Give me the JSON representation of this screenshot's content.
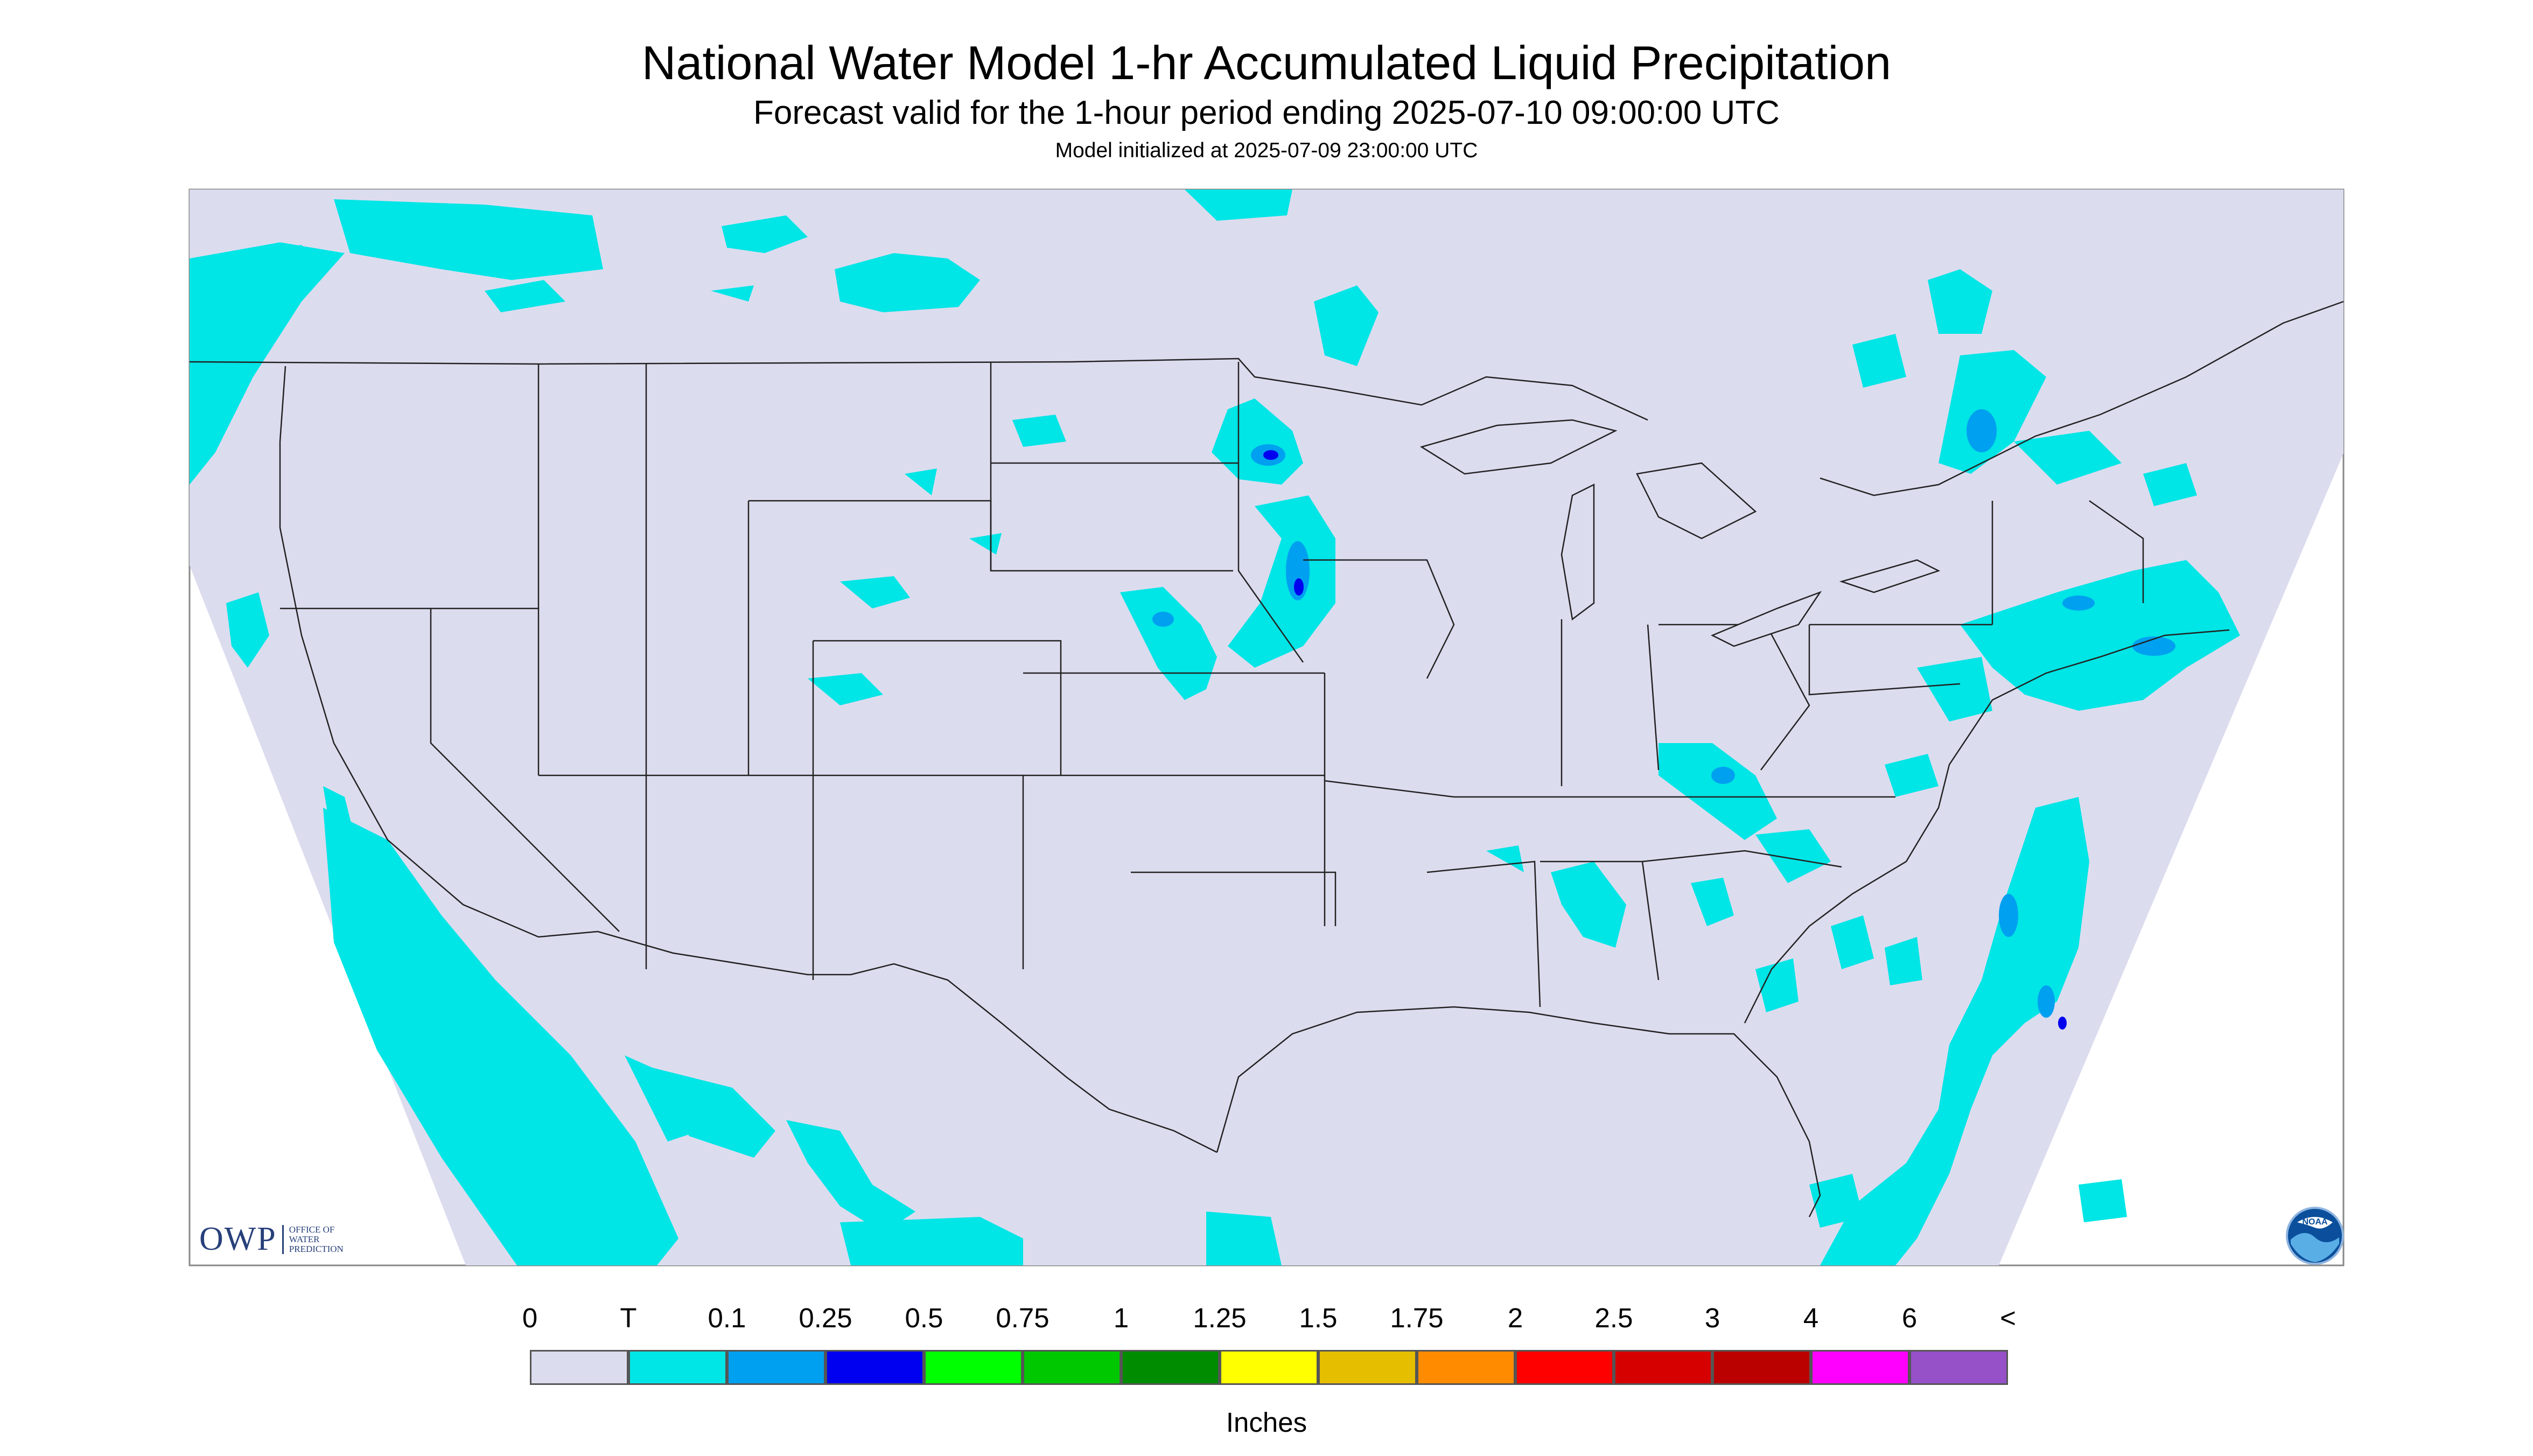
{
  "header": {
    "title": "National Water Model 1-hr Accumulated Liquid Precipitation",
    "subtitle": "Forecast valid for the 1-hour period ending 2025-07-10 09:00:00 UTC",
    "init": "Model initialized at 2025-07-09 23:00:00 UTC"
  },
  "legend": {
    "units": "Inches",
    "ticks": [
      "0",
      "T",
      "0.1",
      "0.25",
      "0.5",
      "0.75",
      "1",
      "1.25",
      "1.5",
      "1.75",
      "2",
      "2.5",
      "3",
      "4",
      "6",
      "<"
    ],
    "colors": [
      "#dcdcef",
      "#00e5e5",
      "#00a0f0",
      "#0000f0",
      "#00ff00",
      "#00c800",
      "#008c00",
      "#ffff00",
      "#e6be00",
      "#ff8c00",
      "#ff0000",
      "#d70000",
      "#bb0000",
      "#ff00ff",
      "#9650c8"
    ]
  },
  "map": {
    "background_color": "#dcdcef",
    "trace_color": "#00e5e5",
    "border_color": "#000000"
  },
  "logos": {
    "owp_text": "OWP",
    "owp_small": [
      "OFFICE OF",
      "WATER",
      "PREDICTION"
    ],
    "noaa_text": "NOAA"
  }
}
